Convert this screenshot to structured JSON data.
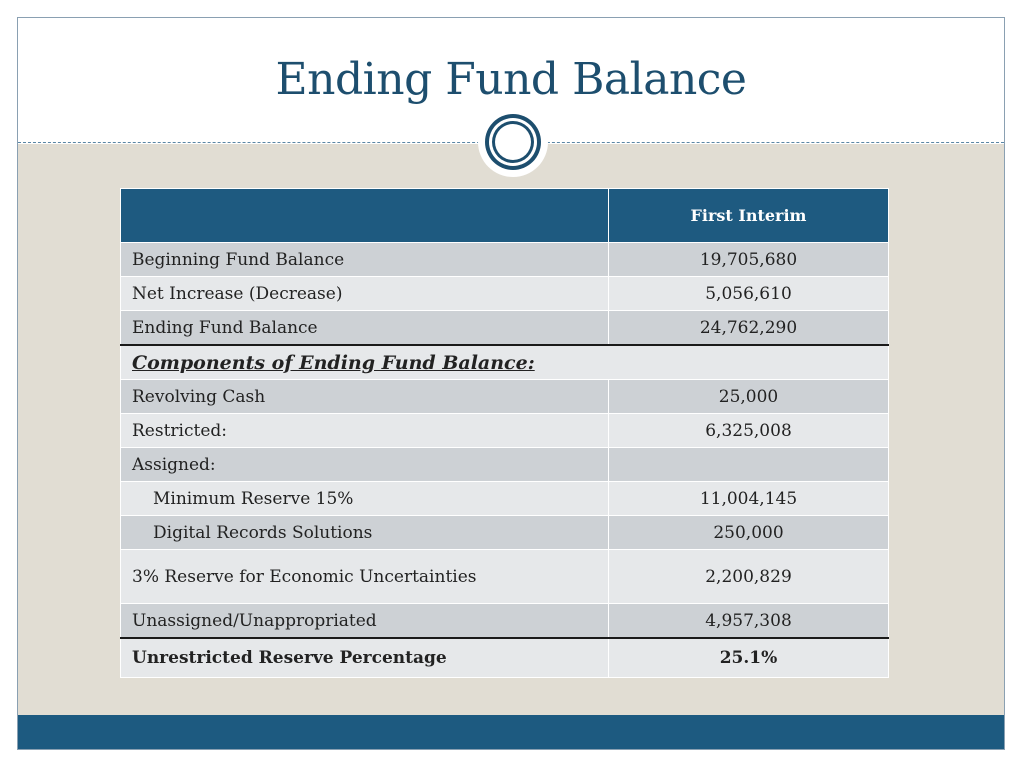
{
  "slide": {
    "title": "Ending Fund Balance"
  },
  "table": {
    "header": {
      "label": "",
      "amount": "First Interim"
    },
    "rows": [
      {
        "label": "Beginning Fund Balance",
        "amount": "19,705,680"
      },
      {
        "label": "Net Increase (Decrease)",
        "amount": "5,056,610"
      },
      {
        "label": "Ending Fund Balance",
        "amount": "24,762,290"
      },
      {
        "label": "Components of Ending Fund Balance:"
      },
      {
        "label": "Revolving Cash",
        "amount": "25,000"
      },
      {
        "label": "Restricted:",
        "amount": "6,325,008"
      },
      {
        "label": "Assigned:",
        "amount": ""
      },
      {
        "label": "Minimum Reserve 15%",
        "amount": "11,004,145"
      },
      {
        "label": "Digital Records Solutions",
        "amount": "250,000"
      },
      {
        "label": "3% Reserve for Economic Uncertainties",
        "amount": "2,200,829"
      },
      {
        "label": "Unassigned/Unappropriated",
        "amount": "4,957,308"
      },
      {
        "label": "Unrestricted Reserve Percentage",
        "amount": "25.1%"
      }
    ]
  },
  "colors": {
    "title": "#1d4e6e",
    "header_bg": "#1e5a80",
    "content_bg": "#e1ddd3",
    "row_dark": "#cdd1d5",
    "row_light": "#e6e8ea"
  }
}
